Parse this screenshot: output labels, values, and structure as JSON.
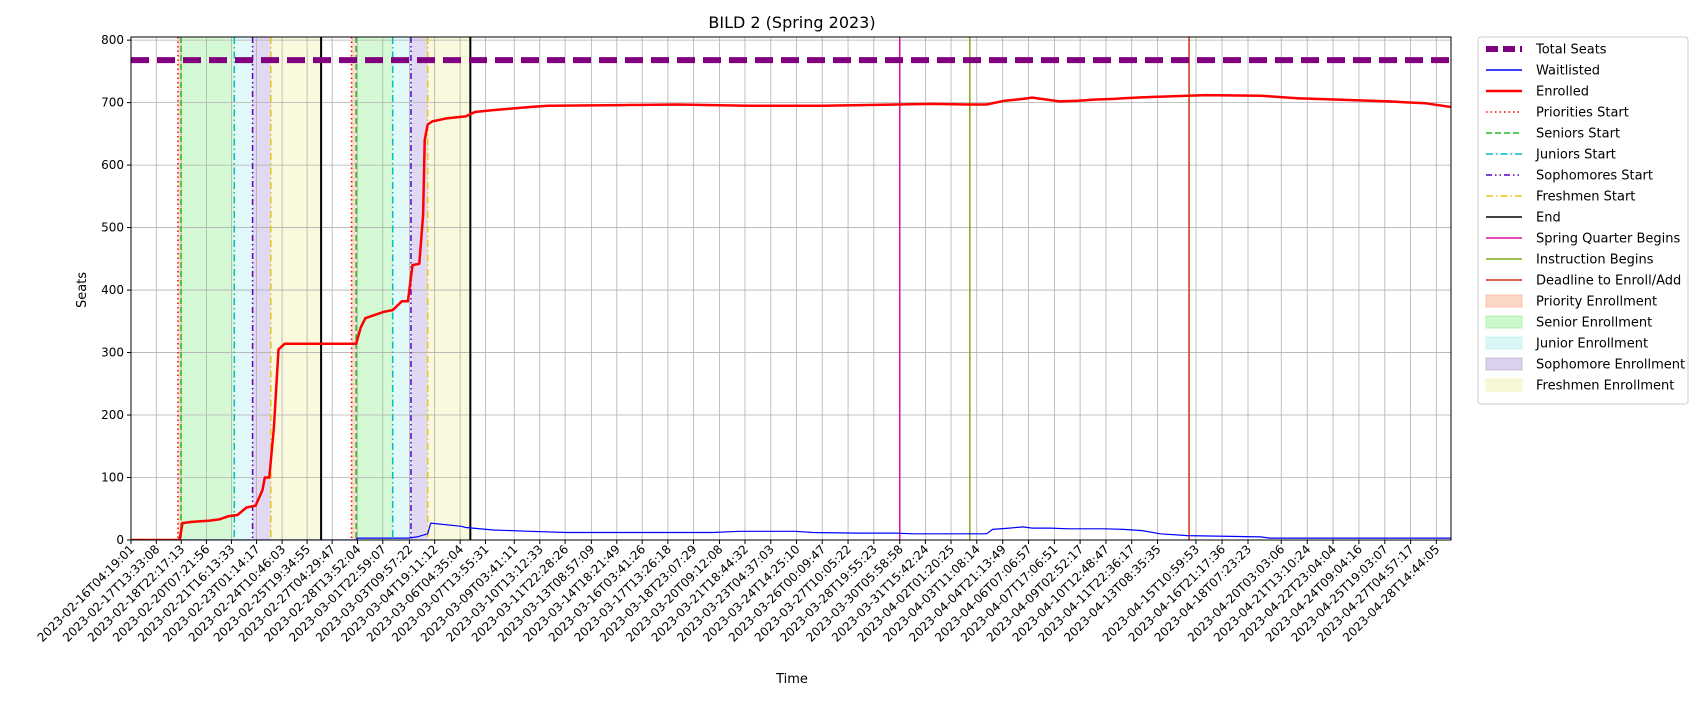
{
  "chart_data": {
    "type": "line",
    "title": "BILD 2 (Spring 2023)",
    "xlabel": "Time",
    "ylabel": "Seats",
    "ylim": [
      0,
      805
    ],
    "xlim": [
      "2023-02-16T04:19:01",
      "2023-04-29T10:00:00"
    ],
    "grid": true,
    "legend_position": "outside-right",
    "y_ticks": [
      0,
      100,
      200,
      300,
      400,
      500,
      600,
      700,
      800
    ],
    "x_ticks": [
      "2023-02-16T04:19:01",
      "2023-02-17T13:33:08",
      "2023-02-18T22:17:13",
      "2023-02-20T07:21:56",
      "2023-02-21T16:13:33",
      "2023-02-23T01:14:17",
      "2023-02-24T10:46:03",
      "2023-02-25T19:34:55",
      "2023-02-27T04:29:47",
      "2023-02-28T13:52:04",
      "2023-03-01T22:59:07",
      "2023-03-03T09:57:22",
      "2023-03-04T19:11:12",
      "2023-03-06T04:35:04",
      "2023-03-07T13:55:31",
      "2023-03-09T03:41:11",
      "2023-03-10T13:12:33",
      "2023-03-11T22:28:26",
      "2023-03-13T08:57:09",
      "2023-03-14T18:21:49",
      "2023-03-16T03:41:26",
      "2023-03-17T13:26:18",
      "2023-03-18T23:07:29",
      "2023-03-20T09:12:08",
      "2023-03-21T18:44:32",
      "2023-03-23T04:37:03",
      "2023-03-24T14:25:10",
      "2023-03-26T00:09:47",
      "2023-03-27T10:05:22",
      "2023-03-28T19:55:23",
      "2023-03-30T05:58:58",
      "2023-03-31T15:42:24",
      "2023-04-02T01:20:25",
      "2023-04-03T11:08:14",
      "2023-04-04T21:13:49",
      "2023-04-06T07:06:57",
      "2023-04-07T17:06:51",
      "2023-04-09T02:52:17",
      "2023-04-10T12:48:47",
      "2023-04-11T22:36:17",
      "2023-04-13T08:35:35",
      "2023-04-15T10:59:53",
      "2023-04-16T21:17:36",
      "2023-04-18T07:23:23",
      "2023-04-20T03:03:06",
      "2023-04-21T13:10:24",
      "2023-04-22T23:04:04",
      "2023-04-24T09:04:16",
      "2023-04-25T19:03:07",
      "2023-04-27T04:57:17",
      "2023-04-28T14:44:05"
    ],
    "series": [
      {
        "name": "Total Seats",
        "color": "#800080",
        "style": "dashed-thick",
        "x": [
          "2023-02-16T04:19:01",
          "2023-04-29T10:00:00"
        ],
        "values": [
          768,
          768
        ]
      },
      {
        "name": "Waitlisted",
        "color": "#0000ff",
        "style": "solid",
        "x": [
          "2023-02-16T04:19:01",
          "2023-02-28T12:00:00",
          "2023-02-28T13:00:00",
          "2023-03-03T09:00:00",
          "2023-03-03T20:00:00",
          "2023-03-04T10:00:00",
          "2023-03-04T14:00:00",
          "2023-03-06T06:00:00",
          "2023-03-06T12:00:00",
          "2023-03-08T00:00:00",
          "2023-03-10T00:00:00",
          "2023-03-12T00:00:00",
          "2023-03-20T00:00:00",
          "2023-03-21T12:00:00",
          "2023-03-24T12:00:00",
          "2023-03-25T12:00:00",
          "2023-03-28T00:00:00",
          "2023-03-30T00:00:00",
          "2023-03-31T00:00:00",
          "2023-04-04T00:00:00",
          "2023-04-04T08:00:00",
          "2023-04-05T06:00:00",
          "2023-04-06T00:00:00",
          "2023-04-06T12:00:00",
          "2023-04-07T12:00:00",
          "2023-04-08T12:00:00",
          "2023-04-10T12:00:00",
          "2023-04-11T12:00:00",
          "2023-04-12T12:00:00",
          "2023-04-13T12:00:00",
          "2023-04-15T00:00:00",
          "2023-04-19T00:00:00",
          "2023-04-19T12:00:00",
          "2023-04-29T10:00:00"
        ],
        "values": [
          0,
          0,
          3,
          3,
          5,
          10,
          27,
          22,
          20,
          16,
          14,
          12,
          12,
          14,
          14,
          12,
          11,
          11,
          10,
          10,
          17,
          19,
          21,
          19,
          19,
          18,
          18,
          17,
          15,
          10,
          7,
          5,
          3,
          3
        ]
      },
      {
        "name": "Enrolled",
        "color": "#ff0000",
        "style": "solid-thick",
        "x": [
          "2023-02-16T04:19:01",
          "2023-02-18T20:00:00",
          "2023-02-19T00:00:00",
          "2023-02-19T12:00:00",
          "2023-02-20T12:00:00",
          "2023-02-21T00:00:00",
          "2023-02-21T12:00:00",
          "2023-02-22T00:00:00",
          "2023-02-22T12:00:00",
          "2023-02-23T00:00:00",
          "2023-02-23T09:00:00",
          "2023-02-23T12:00:00",
          "2023-02-23T18:00:00",
          "2023-02-24T00:00:00",
          "2023-02-24T06:00:00",
          "2023-02-24T14:00:00",
          "2023-02-28T12:00:00",
          "2023-02-28T18:00:00",
          "2023-03-01T00:00:00",
          "2023-03-01T12:00:00",
          "2023-03-02T00:00:00",
          "2023-03-02T12:00:00",
          "2023-03-03T00:00:00",
          "2023-03-03T08:00:00",
          "2023-03-03T14:00:00",
          "2023-03-03T23:00:00",
          "2023-03-04T04:00:00",
          "2023-03-04T06:00:00",
          "2023-03-04T10:00:00",
          "2023-03-04T16:00:00",
          "2023-03-05T12:00:00",
          "2023-03-06T12:00:00",
          "2023-03-07T00:00:00",
          "2023-03-08T00:00:00",
          "2023-03-10T00:00:00",
          "2023-03-11T00:00:00",
          "2023-03-15T00:00:00",
          "2023-03-18T00:00:00",
          "2023-03-22T00:00:00",
          "2023-03-26T00:00:00",
          "2023-03-30T00:00:00",
          "2023-04-01T00:00:00",
          "2023-04-03T00:00:00",
          "2023-04-04T00:00:00",
          "2023-04-05T00:00:00",
          "2023-04-06T00:00:00",
          "2023-04-06T12:00:00",
          "2023-04-07T12:00:00",
          "2023-04-08T00:00:00",
          "2023-04-09T00:00:00",
          "2023-04-10T00:00:00",
          "2023-04-11T00:00:00",
          "2023-04-11T12:00:00",
          "2023-04-13T00:00:00",
          "2023-04-15T00:00:00",
          "2023-04-16T00:00:00",
          "2023-04-19T00:00:00",
          "2023-04-21T00:00:00",
          "2023-04-25T00:00:00",
          "2023-04-26T00:00:00",
          "2023-04-28T00:00:00",
          "2023-04-29T10:00:00"
        ],
        "values": [
          0,
          0,
          27,
          29,
          31,
          33,
          38,
          40,
          52,
          55,
          80,
          100,
          100,
          180,
          305,
          314,
          314,
          340,
          355,
          360,
          365,
          368,
          382,
          382,
          440,
          442,
          520,
          640,
          665,
          670,
          675,
          678,
          685,
          688,
          693,
          695,
          696,
          697,
          695,
          695,
          697,
          698,
          697,
          697,
          703,
          706,
          708,
          704,
          702,
          703,
          705,
          706,
          707,
          709,
          711,
          712,
          711,
          707,
          703,
          702,
          699,
          693
        ]
      }
    ],
    "phases": [
      {
        "name": "Priority Enrollment",
        "color": "#f4a582",
        "start": "2023-02-18T18:00:00",
        "end": "2023-02-18T22:00:00"
      },
      {
        "name": "Senior Enrollment",
        "color": "#90ee90",
        "start": "2023-02-18T22:00:00",
        "end": "2023-02-21T20:00:00"
      },
      {
        "name": "Junior Enrollment",
        "color": "#afeeee",
        "start": "2023-02-21T20:00:00",
        "end": "2023-02-22T20:00:00"
      },
      {
        "name": "Sophomore Enrollment",
        "color": "#b19cd9",
        "start": "2023-02-22T20:00:00",
        "end": "2023-02-23T20:00:00"
      },
      {
        "name": "Freshmen Enrollment",
        "color": "#f0f0a8",
        "start": "2023-02-23T20:00:00",
        "end": "2023-02-26T14:00:00"
      },
      {
        "name": "Priority Enrollment",
        "color": "#f4a582",
        "start": "2023-02-28T06:00:00",
        "end": "2023-02-28T12:00:00"
      },
      {
        "name": "Senior Enrollment",
        "color": "#90ee90",
        "start": "2023-02-28T12:00:00",
        "end": "2023-03-02T12:00:00"
      },
      {
        "name": "Junior Enrollment",
        "color": "#afeeee",
        "start": "2023-03-02T12:00:00",
        "end": "2023-03-03T12:00:00"
      },
      {
        "name": "Sophomore Enrollment",
        "color": "#b19cd9",
        "start": "2023-03-03T12:00:00",
        "end": "2023-03-04T10:00:00"
      },
      {
        "name": "Freshmen Enrollment",
        "color": "#f0f0a8",
        "start": "2023-03-04T10:00:00",
        "end": "2023-03-06T18:00:00"
      }
    ],
    "events": [
      {
        "name": "Priorities Start",
        "color": "#ff0000",
        "dash": "dotted",
        "at": "2023-02-18T18:00:00"
      },
      {
        "name": "Seniors Start",
        "color": "#22bb22",
        "dash": "dashed",
        "at": "2023-02-18T22:00:00"
      },
      {
        "name": "Juniors Start",
        "color": "#00bfbf",
        "dash": "dashdot",
        "at": "2023-02-21T20:00:00"
      },
      {
        "name": "Sophomores Start",
        "color": "#5500cc",
        "dash": "dashdotdot",
        "at": "2023-02-22T20:00:00"
      },
      {
        "name": "Freshmen Start",
        "color": "#e6c619",
        "dash": "dashdot",
        "at": "2023-02-23T20:00:00"
      },
      {
        "name": "End",
        "color": "#000000",
        "dash": "solid",
        "at": "2023-02-26T14:00:00"
      },
      {
        "name": "Priorities Start",
        "color": "#ff0000",
        "dash": "dotted",
        "at": "2023-02-28T06:00:00"
      },
      {
        "name": "Seniors Start",
        "color": "#22bb22",
        "dash": "dashed",
        "at": "2023-02-28T12:00:00"
      },
      {
        "name": "Juniors Start",
        "color": "#00bfbf",
        "dash": "dashdot",
        "at": "2023-03-02T12:00:00"
      },
      {
        "name": "Sophomores Start",
        "color": "#5500cc",
        "dash": "dashdotdot",
        "at": "2023-03-03T12:00:00"
      },
      {
        "name": "Freshmen Start",
        "color": "#e6c619",
        "dash": "dashdot",
        "at": "2023-03-04T10:00:00"
      },
      {
        "name": "End",
        "color": "#000000",
        "dash": "solid",
        "at": "2023-03-06T18:00:00"
      },
      {
        "name": "Spring Quarter Begins",
        "color": "#e0109c",
        "dash": "solid",
        "at": "2023-03-30T06:00:00"
      },
      {
        "name": "Instruction Begins",
        "color": "#7faa10",
        "dash": "solid",
        "at": "2023-04-03T02:00:00"
      },
      {
        "name": "Deadline to Enroll/Add",
        "color": "#cc3311",
        "dash": "solid",
        "at": "2023-04-15T02:00:00"
      }
    ],
    "legend": [
      {
        "label": "Total Seats",
        "kind": "line",
        "color": "#800080",
        "dash": "dashed-thick"
      },
      {
        "label": "Waitlisted",
        "kind": "line",
        "color": "#0000ff",
        "dash": "solid"
      },
      {
        "label": "Enrolled",
        "kind": "line",
        "color": "#ff0000",
        "dash": "solid-thick"
      },
      {
        "label": "Priorities Start",
        "kind": "line",
        "color": "#ff0000",
        "dash": "dotted"
      },
      {
        "label": "Seniors Start",
        "kind": "line",
        "color": "#22bb22",
        "dash": "dashed"
      },
      {
        "label": "Juniors Start",
        "kind": "line",
        "color": "#00bfbf",
        "dash": "dashdot"
      },
      {
        "label": "Sophomores Start",
        "kind": "line",
        "color": "#5500cc",
        "dash": "dashdotdot"
      },
      {
        "label": "Freshmen Start",
        "kind": "line",
        "color": "#e6c619",
        "dash": "dashdot"
      },
      {
        "label": "End",
        "kind": "line",
        "color": "#000000",
        "dash": "solid"
      },
      {
        "label": "Spring Quarter Begins",
        "kind": "line",
        "color": "#e0109c",
        "dash": "solid"
      },
      {
        "label": "Instruction Begins",
        "kind": "line",
        "color": "#7faa10",
        "dash": "solid"
      },
      {
        "label": "Deadline to Enroll/Add",
        "kind": "line",
        "color": "#cc3311",
        "dash": "solid"
      },
      {
        "label": "Priority Enrollment",
        "kind": "patch",
        "color": "#f4a582"
      },
      {
        "label": "Senior Enrollment",
        "kind": "patch",
        "color": "#90ee90"
      },
      {
        "label": "Junior Enrollment",
        "kind": "patch",
        "color": "#afeeee"
      },
      {
        "label": "Sophomore Enrollment",
        "kind": "patch",
        "color": "#b19cd9"
      },
      {
        "label": "Freshmen Enrollment",
        "kind": "patch",
        "color": "#f0f0a8"
      }
    ]
  }
}
